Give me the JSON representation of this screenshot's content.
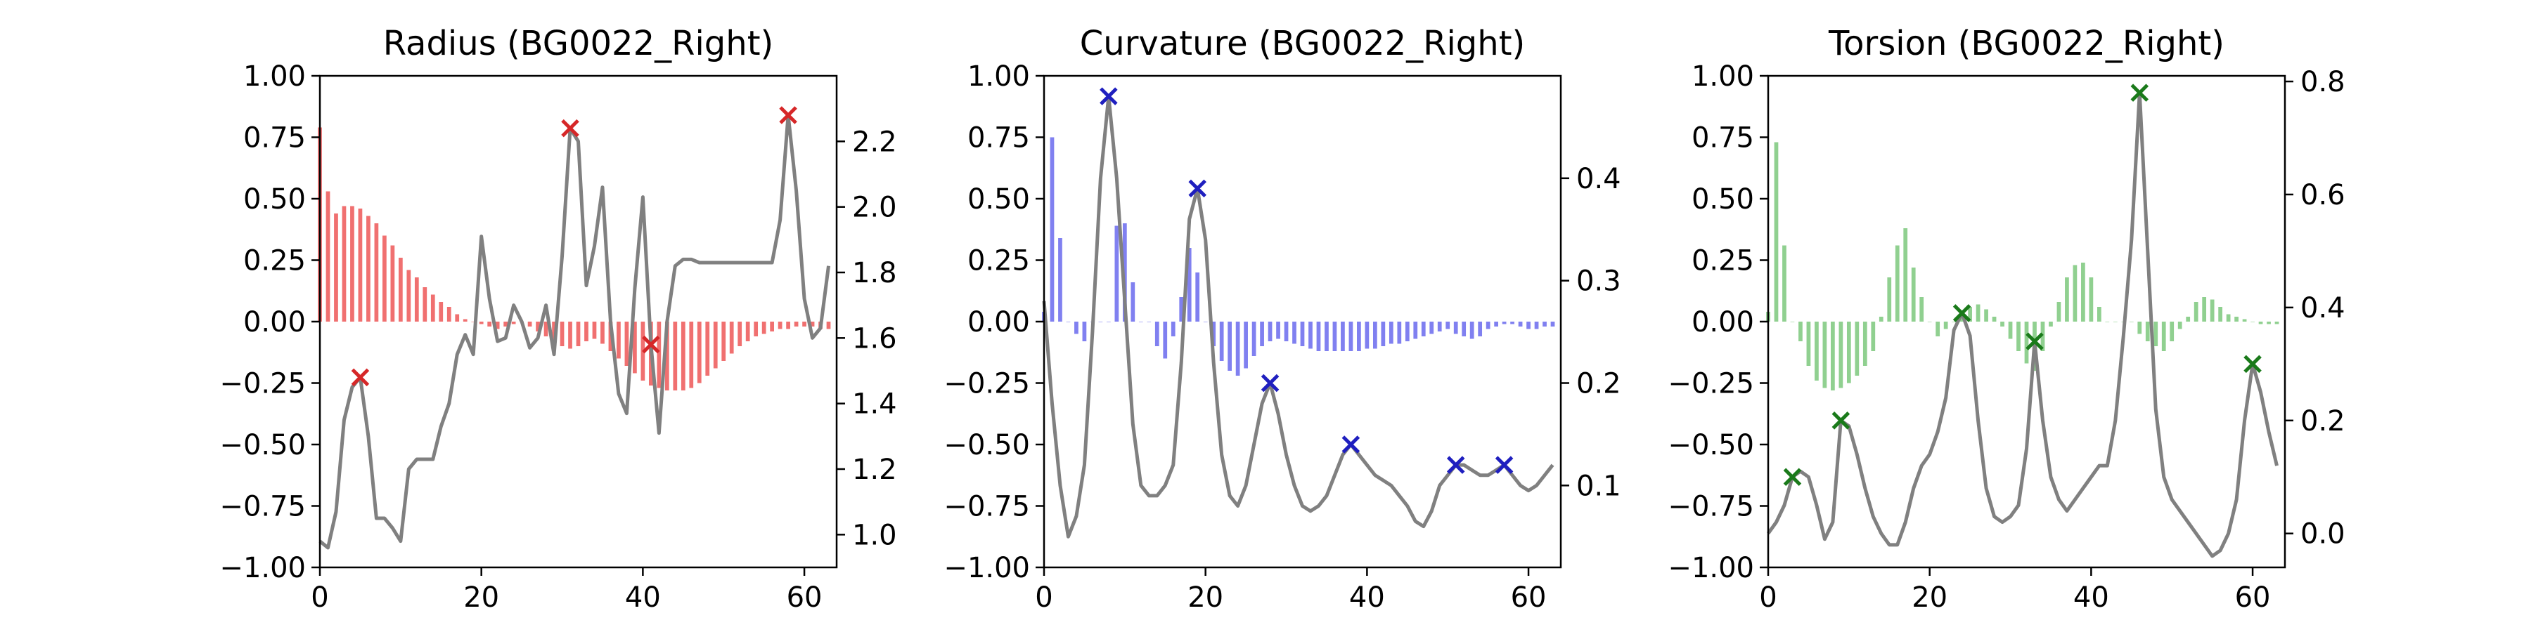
{
  "chart_data": [
    {
      "type": "bar",
      "title": "Radius (BG0022_Right)",
      "xlim": [
        0,
        64
      ],
      "ylim_left": [
        -1.0,
        1.0
      ],
      "ylim_right": [
        0.9,
        2.4
      ],
      "x_ticks": [
        "0",
        "20",
        "40",
        "60"
      ],
      "y_left_ticks": [
        "−1.00",
        "−0.75",
        "−0.50",
        "−0.25",
        "0.00",
        "0.25",
        "0.50",
        "0.75",
        "1.00"
      ],
      "y_right_ticks": [
        "1.0",
        "1.2",
        "1.4",
        "1.6",
        "1.8",
        "2.0",
        "2.2"
      ],
      "colors": {
        "bars": "#f07070",
        "line": "#808080",
        "markers": "#d62728"
      },
      "bars": [
        0.79,
        0.53,
        0.44,
        0.47,
        0.47,
        0.46,
        0.43,
        0.4,
        0.35,
        0.31,
        0.26,
        0.21,
        0.18,
        0.14,
        0.11,
        0.08,
        0.06,
        0.03,
        0.01,
        0.0,
        -0.01,
        -0.02,
        -0.03,
        -0.02,
        -0.01,
        0.0,
        -0.02,
        -0.04,
        -0.06,
        -0.08,
        -0.1,
        -0.11,
        -0.1,
        -0.08,
        -0.07,
        -0.09,
        -0.12,
        -0.15,
        -0.18,
        -0.21,
        -0.24,
        -0.26,
        -0.27,
        -0.28,
        -0.28,
        -0.28,
        -0.27,
        -0.25,
        -0.22,
        -0.19,
        -0.16,
        -0.13,
        -0.1,
        -0.08,
        -0.06,
        -0.05,
        -0.04,
        -0.03,
        -0.03,
        -0.02,
        -0.02,
        -0.02,
        -0.03,
        -0.03
      ],
      "line": [
        0.98,
        0.96,
        1.07,
        1.35,
        1.45,
        1.48,
        1.3,
        1.05,
        1.05,
        1.02,
        0.98,
        1.2,
        1.23,
        1.23,
        1.23,
        1.33,
        1.4,
        1.55,
        1.61,
        1.55,
        1.91,
        1.72,
        1.59,
        1.6,
        1.7,
        1.65,
        1.57,
        1.6,
        1.7,
        1.55,
        1.85,
        2.24,
        2.2,
        1.76,
        1.88,
        2.06,
        1.65,
        1.43,
        1.37,
        1.75,
        2.03,
        1.58,
        1.31,
        1.65,
        1.82,
        1.84,
        1.84,
        1.83,
        1.83,
        1.83,
        1.83,
        1.83,
        1.83,
        1.83,
        1.83,
        1.83,
        1.83,
        1.96,
        2.28,
        2.05,
        1.72,
        1.6,
        1.63,
        1.82
      ],
      "peaks": [
        5,
        31,
        41,
        58
      ]
    },
    {
      "type": "bar",
      "title": "Curvature (BG0022_Right)",
      "xlim": [
        0,
        64
      ],
      "ylim_left": [
        -1.0,
        1.0
      ],
      "ylim_right": [
        0.02,
        0.5
      ],
      "x_ticks": [
        "0",
        "20",
        "40",
        "60"
      ],
      "y_left_ticks": [
        "−1.00",
        "−0.75",
        "−0.50",
        "−0.25",
        "0.00",
        "0.25",
        "0.50",
        "0.75",
        "1.00"
      ],
      "y_right_ticks": [
        "0.1",
        "0.2",
        "0.3",
        "0.4"
      ],
      "colors": {
        "bars": "#8080f0",
        "line": "#808080",
        "markers": "#1f1fbf"
      },
      "bars": [
        0.04,
        0.75,
        0.34,
        0.0,
        -0.05,
        -0.08,
        0.0,
        0.0,
        0.0,
        0.39,
        0.4,
        0.16,
        0.0,
        0.0,
        -0.1,
        -0.15,
        -0.06,
        0.1,
        0.3,
        0.2,
        0.0,
        -0.1,
        -0.16,
        -0.2,
        -0.22,
        -0.19,
        -0.14,
        -0.1,
        -0.08,
        -0.07,
        -0.08,
        -0.09,
        -0.1,
        -0.11,
        -0.12,
        -0.12,
        -0.12,
        -0.12,
        -0.12,
        -0.12,
        -0.11,
        -0.11,
        -0.1,
        -0.09,
        -0.09,
        -0.08,
        -0.07,
        -0.06,
        -0.05,
        -0.04,
        -0.03,
        -0.05,
        -0.06,
        -0.07,
        -0.06,
        -0.03,
        -0.02,
        -0.01,
        -0.01,
        -0.02,
        -0.03,
        -0.03,
        -0.02,
        -0.02
      ],
      "line": [
        0.28,
        0.18,
        0.1,
        0.05,
        0.07,
        0.12,
        0.25,
        0.4,
        0.48,
        0.4,
        0.28,
        0.16,
        0.1,
        0.09,
        0.09,
        0.1,
        0.12,
        0.22,
        0.36,
        0.39,
        0.34,
        0.22,
        0.13,
        0.09,
        0.08,
        0.1,
        0.14,
        0.18,
        0.2,
        0.17,
        0.13,
        0.1,
        0.08,
        0.075,
        0.08,
        0.09,
        0.11,
        0.13,
        0.14,
        0.13,
        0.12,
        0.11,
        0.105,
        0.1,
        0.09,
        0.08,
        0.065,
        0.06,
        0.075,
        0.1,
        0.11,
        0.12,
        0.12,
        0.115,
        0.11,
        0.11,
        0.115,
        0.12,
        0.11,
        0.1,
        0.095,
        0.1,
        0.11,
        0.12
      ],
      "peaks": [
        8,
        19,
        28,
        38,
        51,
        57
      ]
    },
    {
      "type": "bar",
      "title": "Torsion (BG0022_Right)",
      "xlim": [
        0,
        64
      ],
      "ylim_left": [
        -1.0,
        1.0
      ],
      "ylim_right": [
        -0.06,
        0.81
      ],
      "x_ticks": [
        "0",
        "20",
        "40",
        "60"
      ],
      "y_left_ticks": [
        "−1.00",
        "−0.75",
        "−0.50",
        "−0.25",
        "0.00",
        "0.25",
        "0.50",
        "0.75",
        "1.00"
      ],
      "y_right_ticks": [
        "0.0",
        "0.2",
        "0.4",
        "0.6",
        "0.8"
      ],
      "colors": {
        "bars": "#90d090",
        "line": "#808080",
        "markers": "#1a7a1a"
      },
      "bars": [
        0.04,
        0.73,
        0.31,
        0.0,
        -0.08,
        -0.18,
        -0.24,
        -0.27,
        -0.28,
        -0.27,
        -0.25,
        -0.22,
        -0.18,
        -0.12,
        0.02,
        0.18,
        0.31,
        0.38,
        0.22,
        0.1,
        0.0,
        -0.06,
        -0.03,
        0.0,
        0.03,
        0.06,
        0.07,
        0.05,
        0.02,
        -0.02,
        -0.07,
        -0.12,
        -0.17,
        -0.2,
        -0.12,
        -0.02,
        0.08,
        0.18,
        0.23,
        0.24,
        0.18,
        0.06,
        0.0,
        0.0,
        0.0,
        0.0,
        -0.05,
        -0.08,
        -0.1,
        -0.12,
        -0.08,
        -0.03,
        0.02,
        0.08,
        0.1,
        0.09,
        0.06,
        0.03,
        0.02,
        0.01,
        0.0,
        -0.01,
        -0.01,
        -0.01
      ],
      "line": [
        0.0,
        0.02,
        0.05,
        0.1,
        0.11,
        0.1,
        0.05,
        -0.01,
        0.02,
        0.2,
        0.19,
        0.14,
        0.08,
        0.03,
        0.0,
        -0.02,
        -0.02,
        0.02,
        0.08,
        0.12,
        0.14,
        0.18,
        0.24,
        0.36,
        0.39,
        0.35,
        0.2,
        0.08,
        0.03,
        0.02,
        0.03,
        0.05,
        0.15,
        0.34,
        0.2,
        0.1,
        0.06,
        0.04,
        0.06,
        0.08,
        0.1,
        0.12,
        0.12,
        0.2,
        0.35,
        0.52,
        0.78,
        0.5,
        0.22,
        0.1,
        0.06,
        0.04,
        0.02,
        0.0,
        -0.02,
        -0.04,
        -0.03,
        0.0,
        0.06,
        0.2,
        0.3,
        0.25,
        0.18,
        0.12
      ],
      "peaks": [
        3,
        9,
        24,
        33,
        46,
        60
      ]
    }
  ]
}
